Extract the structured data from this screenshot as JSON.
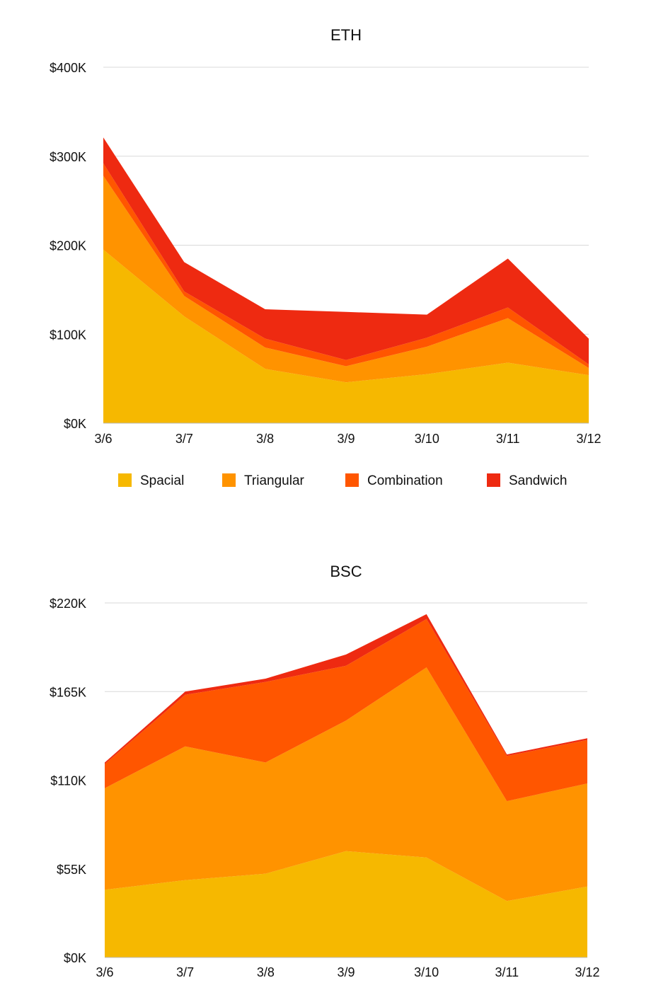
{
  "colors": {
    "spacial": "#F6B800",
    "triangular": "#FF9300",
    "combination": "#FF5600",
    "sandwich": "#EE2A11",
    "grid": "#d9d9d9"
  },
  "legend": {
    "items": [
      {
        "label": "Spacial",
        "color": "#F6B800"
      },
      {
        "label": "Triangular",
        "color": "#FF9300"
      },
      {
        "label": "Combination",
        "color": "#FF5600"
      },
      {
        "label": "Sandwich",
        "color": "#EE2A11"
      }
    ]
  },
  "chart_data": [
    {
      "type": "area",
      "stacked": true,
      "title": "ETH",
      "xlabel": "",
      "ylabel": "",
      "categories": [
        "3/6",
        "3/7",
        "3/8",
        "3/9",
        "3/10",
        "3/11",
        "3/12"
      ],
      "ylim": [
        0,
        400000
      ],
      "yticks": [
        0,
        100000,
        200000,
        300000,
        400000
      ],
      "ytick_labels": [
        "$0K",
        "$100K",
        "$200K",
        "$300K",
        "$400K"
      ],
      "grid": true,
      "legend_position": "bottom",
      "series": [
        {
          "name": "Spacial",
          "values": [
            195000,
            120000,
            61000,
            46000,
            55000,
            68000,
            54000
          ]
        },
        {
          "name": "Triangular",
          "values": [
            83000,
            23000,
            24000,
            18000,
            31000,
            50000,
            8000
          ]
        },
        {
          "name": "Combination",
          "values": [
            14000,
            5000,
            10000,
            7000,
            10000,
            12000,
            4000
          ]
        },
        {
          "name": "Sandwich",
          "values": [
            29000,
            33000,
            33000,
            54000,
            26000,
            55000,
            29000
          ]
        }
      ]
    },
    {
      "type": "area",
      "stacked": true,
      "title": "BSC",
      "xlabel": "",
      "ylabel": "",
      "categories": [
        "3/6",
        "3/7",
        "3/8",
        "3/9",
        "3/10",
        "3/11",
        "3/12"
      ],
      "ylim": [
        0,
        220000
      ],
      "yticks": [
        0,
        55000,
        110000,
        165000,
        220000
      ],
      "ytick_labels": [
        "$0K",
        "$55K",
        "$110K",
        "$165K",
        "$220K"
      ],
      "grid": true,
      "legend_position": "none",
      "series": [
        {
          "name": "Spacial",
          "values": [
            42000,
            48000,
            52000,
            66000,
            62000,
            35000,
            44000
          ]
        },
        {
          "name": "Triangular",
          "values": [
            63000,
            83000,
            69000,
            81000,
            118000,
            62000,
            64000
          ]
        },
        {
          "name": "Combination",
          "values": [
            15000,
            32000,
            50000,
            34000,
            30000,
            28000,
            27000
          ]
        },
        {
          "name": "Sandwich",
          "values": [
            1000,
            2000,
            2000,
            7000,
            3000,
            1000,
            1000
          ]
        }
      ]
    }
  ]
}
